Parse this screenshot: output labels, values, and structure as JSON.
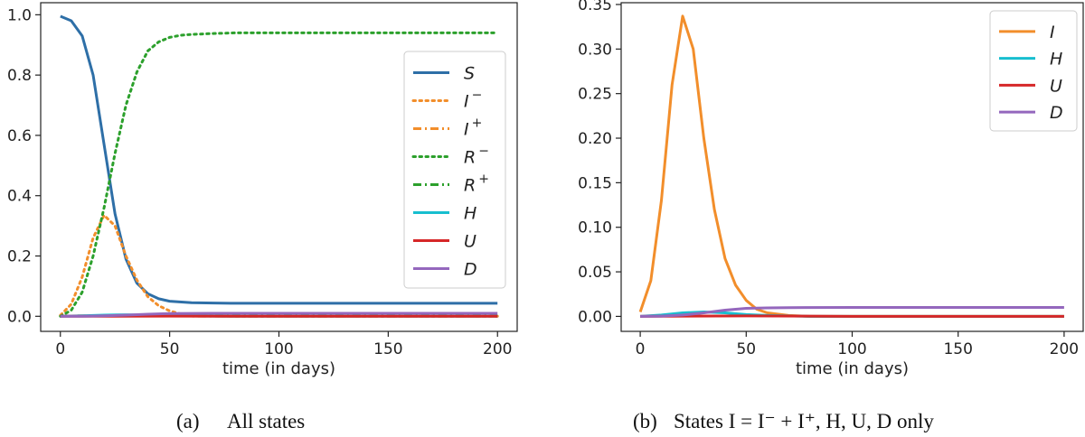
{
  "chart_data": [
    {
      "type": "line",
      "caption": {
        "tag": "(a)",
        "text": "All states"
      },
      "xlabel": "time (in days)",
      "ylabel": "",
      "xlim": [
        -9,
        209
      ],
      "ylim": [
        -0.05,
        1.04
      ],
      "xticks": [
        0,
        50,
        100,
        150,
        200
      ],
      "yticks": [
        0.0,
        0.2,
        0.4,
        0.6,
        0.8,
        1.0
      ],
      "ytick_labels": [
        "0.0",
        "0.2",
        "0.4",
        "0.6",
        "0.8",
        "1.0"
      ],
      "legend_position": "center-right",
      "series": [
        {
          "name": "S",
          "sup": "",
          "color": "#2e6fa7",
          "dash": "solid",
          "x": [
            0,
            5,
            10,
            15,
            20,
            25,
            30,
            35,
            40,
            45,
            50,
            60,
            70,
            80,
            100,
            150,
            200
          ],
          "y": [
            0.995,
            0.98,
            0.93,
            0.8,
            0.57,
            0.34,
            0.19,
            0.11,
            0.075,
            0.058,
            0.05,
            0.045,
            0.044,
            0.043,
            0.043,
            0.043,
            0.043
          ]
        },
        {
          "name": "I",
          "sup": "−",
          "color": "#f28e2b",
          "dash": "dot",
          "x": [
            0,
            5,
            10,
            15,
            20,
            25,
            30,
            35,
            40,
            45,
            50,
            55,
            60,
            70,
            80,
            100,
            200
          ],
          "y": [
            0.003,
            0.04,
            0.13,
            0.26,
            0.335,
            0.3,
            0.2,
            0.12,
            0.065,
            0.035,
            0.018,
            0.008,
            0.004,
            0.001,
            0,
            0,
            0
          ]
        },
        {
          "name": "I",
          "sup": "+",
          "color": "#f28e2b",
          "dash": "dashdot",
          "x": [
            0,
            50,
            100,
            150,
            200
          ],
          "y": [
            0.001,
            0.001,
            0,
            0,
            0
          ]
        },
        {
          "name": "R",
          "sup": "−",
          "color": "#2ca02c",
          "dash": "dot",
          "x": [
            0,
            5,
            10,
            15,
            20,
            25,
            30,
            35,
            40,
            45,
            50,
            55,
            60,
            70,
            80,
            100,
            150,
            200
          ],
          "y": [
            0.0,
            0.02,
            0.08,
            0.2,
            0.36,
            0.54,
            0.7,
            0.81,
            0.88,
            0.91,
            0.925,
            0.932,
            0.935,
            0.938,
            0.94,
            0.94,
            0.94,
            0.94
          ]
        },
        {
          "name": "R",
          "sup": "+",
          "color": "#2ca02c",
          "dash": "dashdot",
          "x": [
            0,
            50,
            100,
            150,
            200
          ],
          "y": [
            0.001,
            0.002,
            0.002,
            0.002,
            0.002
          ]
        },
        {
          "name": "H",
          "sup": "",
          "color": "#17becf",
          "dash": "solid",
          "x": [
            0,
            10,
            20,
            30,
            40,
            50,
            60,
            80,
            100,
            200
          ],
          "y": [
            0.0,
            0.0015,
            0.004,
            0.005,
            0.004,
            0.002,
            0.001,
            0.0,
            0.0,
            0.0
          ]
        },
        {
          "name": "U",
          "sup": "",
          "color": "#d62728",
          "dash": "solid",
          "x": [
            0,
            50,
            100,
            150,
            200
          ],
          "y": [
            0.0,
            0.0005,
            0.0,
            0.0,
            0.0
          ]
        },
        {
          "name": "D",
          "sup": "",
          "color": "#9467bd",
          "dash": "solid",
          "x": [
            0,
            10,
            20,
            30,
            40,
            50,
            60,
            70,
            100,
            150,
            200
          ],
          "y": [
            0.0,
            0.0003,
            0.0015,
            0.004,
            0.007,
            0.009,
            0.0095,
            0.0098,
            0.01,
            0.01,
            0.01
          ]
        }
      ]
    },
    {
      "type": "line",
      "caption": {
        "tag": "(b)",
        "text": "States I = I⁻ + I⁺, H, U, D only"
      },
      "xlabel": "time (in days)",
      "ylabel": "",
      "xlim": [
        -9,
        209
      ],
      "ylim": [
        -0.0168,
        0.352
      ],
      "xticks": [
        0,
        50,
        100,
        150,
        200
      ],
      "yticks": [
        0.0,
        0.05,
        0.1,
        0.15,
        0.2,
        0.25,
        0.3,
        0.35
      ],
      "ytick_labels": [
        "0.00",
        "0.05",
        "0.10",
        "0.15",
        "0.20",
        "0.25",
        "0.30",
        "0.35"
      ],
      "legend_position": "top-right",
      "series": [
        {
          "name": "I",
          "sup": "",
          "color": "#f28e2b",
          "dash": "solid",
          "x": [
            0,
            5,
            10,
            15,
            20,
            25,
            30,
            35,
            40,
            45,
            50,
            55,
            60,
            70,
            80,
            100,
            200
          ],
          "y": [
            0.005,
            0.04,
            0.13,
            0.26,
            0.337,
            0.3,
            0.2,
            0.12,
            0.065,
            0.035,
            0.018,
            0.008,
            0.004,
            0.001,
            0,
            0,
            0
          ]
        },
        {
          "name": "H",
          "sup": "",
          "color": "#17becf",
          "dash": "solid",
          "x": [
            0,
            10,
            20,
            30,
            40,
            50,
            60,
            80,
            100,
            200
          ],
          "y": [
            0.0,
            0.0015,
            0.004,
            0.005,
            0.004,
            0.002,
            0.001,
            0.0,
            0.0,
            0.0
          ]
        },
        {
          "name": "U",
          "sup": "",
          "color": "#d62728",
          "dash": "solid",
          "x": [
            0,
            50,
            100,
            150,
            200
          ],
          "y": [
            0.0,
            0.0005,
            0.0,
            0.0,
            0.0
          ]
        },
        {
          "name": "D",
          "sup": "",
          "color": "#9467bd",
          "dash": "solid",
          "x": [
            0,
            10,
            20,
            30,
            40,
            50,
            60,
            70,
            100,
            150,
            200
          ],
          "y": [
            0.0,
            0.0003,
            0.0015,
            0.004,
            0.007,
            0.009,
            0.0095,
            0.0098,
            0.01,
            0.01,
            0.01
          ]
        }
      ]
    }
  ]
}
